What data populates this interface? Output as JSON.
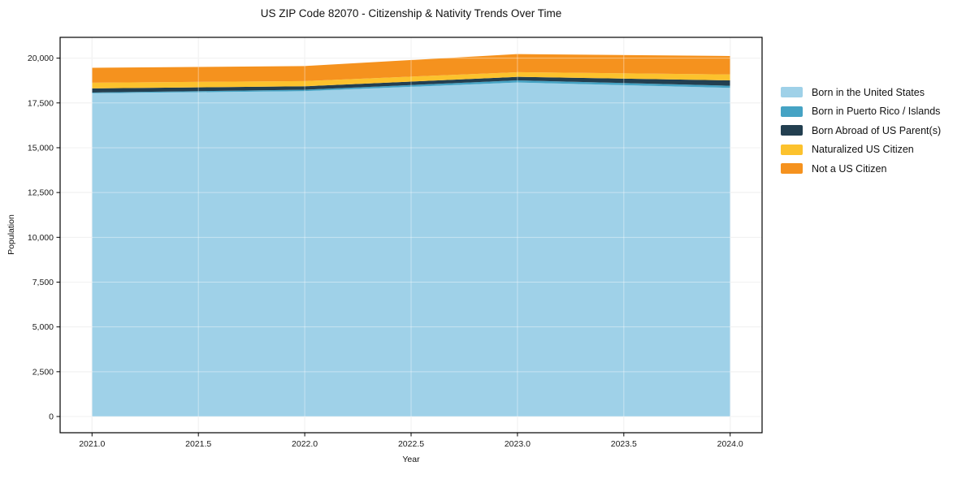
{
  "chart_data": {
    "type": "area",
    "stacked": true,
    "title": "US ZIP Code 82070 - Citizenship & Nativity Trends Over Time",
    "xlabel": "Year",
    "ylabel": "Population",
    "x": [
      2021,
      2022,
      2023,
      2024
    ],
    "series": [
      {
        "name": "Born in the United States",
        "color": "#9fd1e8",
        "values": [
          18040,
          18160,
          18640,
          18340
        ]
      },
      {
        "name": "Born in Puerto Rico / Islands",
        "color": "#45a3c4",
        "values": [
          40,
          75,
          120,
          120
        ]
      },
      {
        "name": "Born Abroad of US Parent(s)",
        "color": "#233f50",
        "values": [
          230,
          195,
          195,
          300
        ]
      },
      {
        "name": "Naturalized US Citizen",
        "color": "#fcc22d",
        "values": [
          320,
          290,
          260,
          330
        ]
      },
      {
        "name": "Not a US Citizen",
        "color": "#f5921e",
        "values": [
          830,
          840,
          1010,
          1030
        ]
      }
    ],
    "totals": [
      19460,
      19560,
      20225,
      20120
    ],
    "xlim": [
      2020.85,
      2024.15
    ],
    "ylim": [
      -905,
      21160
    ],
    "x_ticks": [
      2021.0,
      2021.5,
      2022.0,
      2022.5,
      2023.0,
      2023.5,
      2024.0
    ],
    "x_tick_labels": [
      "2021.0",
      "2021.5",
      "2022.0",
      "2022.5",
      "2023.0",
      "2023.5",
      "2024.0"
    ],
    "y_ticks": [
      0,
      2500,
      5000,
      7500,
      10000,
      12500,
      15000,
      17500,
      20000
    ],
    "y_tick_labels": [
      "0",
      "2,500",
      "5,000",
      "7,500",
      "10,000",
      "12,500",
      "15,000",
      "17,500",
      "20,000"
    ],
    "grid": true,
    "legend_position": "right",
    "colors": {
      "plot_background": "#ffffff",
      "grid_under": "#e7e7e7",
      "grid_over": "rgba(255,255,255,0.42)",
      "spine": "#000000",
      "tick_text": "#1a1a1a"
    }
  }
}
